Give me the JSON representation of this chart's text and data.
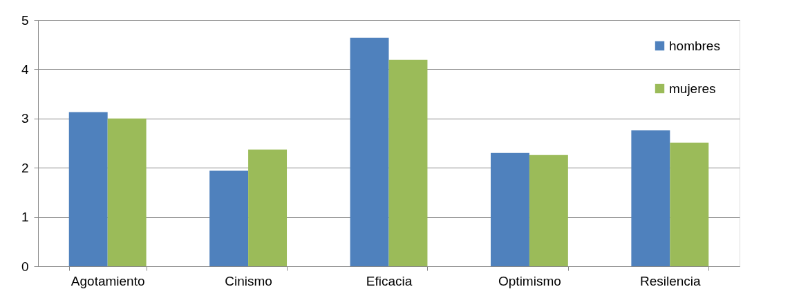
{
  "chart_data": {
    "type": "bar",
    "categories": [
      "Agotamiento",
      "Cinismo",
      "Eficacia",
      "Optimismo",
      "Resilencia"
    ],
    "series": [
      {
        "name": "hombres",
        "color": "#4f81bd",
        "values": [
          3.13,
          1.94,
          4.64,
          2.3,
          2.76
        ]
      },
      {
        "name": "mujeres",
        "color": "#9bbb59",
        "values": [
          3.0,
          2.37,
          4.19,
          2.26,
          2.51
        ]
      }
    ],
    "ylim": [
      0,
      5
    ],
    "yticks": [
      0,
      1,
      2,
      3,
      4,
      5
    ],
    "grid": "y",
    "legend": "right"
  }
}
